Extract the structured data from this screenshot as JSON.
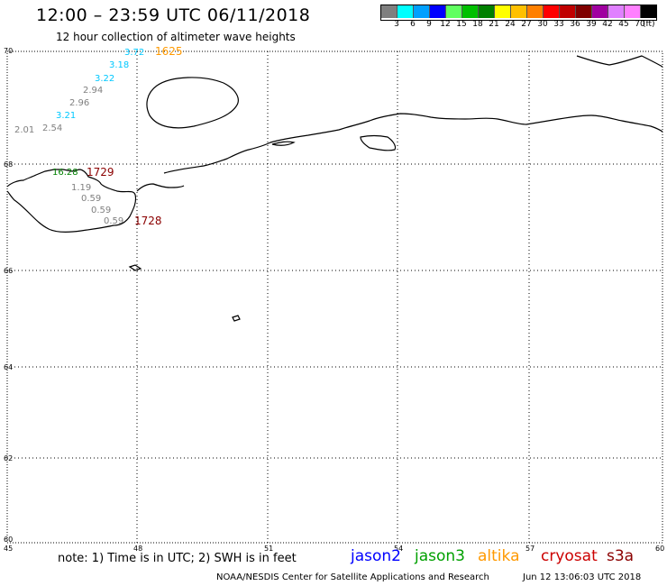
{
  "header": {
    "title": "12:00 – 23:59 UTC 06/11/2018",
    "subtitle": "12 hour collection of altimeter wave heights"
  },
  "scale": {
    "colors": [
      "#7f7f7f",
      "#00ffff",
      "#00a0ff",
      "#0000ff",
      "#60ff60",
      "#00c000",
      "#008000",
      "#ffff00",
      "#ffc000",
      "#ff8000",
      "#ff0000",
      "#c00000",
      "#800000",
      "#a000a0",
      "#e080ff",
      "#ff80ff",
      "#000000"
    ],
    "labels": [
      "3",
      "6",
      "9",
      "12",
      "15",
      "18",
      "21",
      "24",
      "27",
      "30",
      "33",
      "36",
      "39",
      "42",
      "45",
      "70"
    ],
    "unit": "(ft)"
  },
  "axes": {
    "lon_labels": [
      "45",
      "48",
      "51",
      "54",
      "57",
      "60"
    ],
    "lat_labels": [
      "70",
      "68",
      "66",
      "64",
      "62",
      "60"
    ]
  },
  "measurements": [
    {
      "text": "3.72",
      "color": "#00c8ff"
    },
    {
      "text": "3.18",
      "color": "#00c8ff"
    },
    {
      "text": "3.22",
      "color": "#00c8ff"
    },
    {
      "text": "2.94",
      "color": "#808080"
    },
    {
      "text": "2.96",
      "color": "#808080"
    },
    {
      "text": "3.21",
      "color": "#00c8ff"
    },
    {
      "text": "2.01",
      "color": "#808080"
    },
    {
      "text": "2.54",
      "color": "#808080"
    },
    {
      "text": "16.28",
      "color": "#008000"
    },
    {
      "text": "1.19",
      "color": "#808080"
    },
    {
      "text": "0.59",
      "color": "#808080"
    },
    {
      "text": "0.59",
      "color": "#808080"
    },
    {
      "text": "0.59",
      "color": "#808080"
    }
  ],
  "passes": [
    {
      "text": "1625",
      "color": "#ff9900"
    },
    {
      "text": "1729",
      "color": "#8b0000"
    },
    {
      "text": "1728",
      "color": "#8b0000"
    }
  ],
  "footer": {
    "note": "note: 1) Time is in UTC; 2) SWH is in feet",
    "legend": [
      {
        "label": "jason2",
        "color": "#0000ff"
      },
      {
        "label": "jason3",
        "color": "#00a000"
      },
      {
        "label": "altika",
        "color": "#ff9900"
      },
      {
        "label": "cryosat",
        "color": "#cc0000"
      },
      {
        "label": "s3a",
        "color": "#8b0000"
      }
    ],
    "credit": "NOAA/NESDIS Center for Satellite Applications and Research",
    "timestamp": "Jun 12 13:06:03 UTC 2018"
  }
}
